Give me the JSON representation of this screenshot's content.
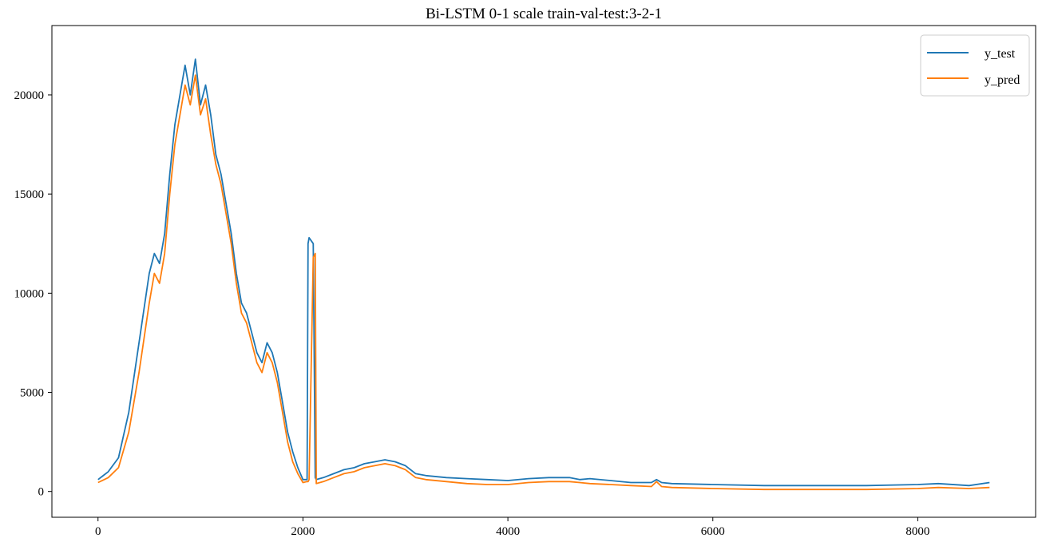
{
  "chart_data": {
    "type": "line",
    "title": "Bi-LSTM 0-1 scale train-val-test:3-2-1",
    "xlabel": "",
    "ylabel": "",
    "xlim": [
      -450,
      9150
    ],
    "ylim": [
      -1300,
      23500
    ],
    "xticks": [
      0,
      2000,
      4000,
      6000,
      8000
    ],
    "xtick_labels": [
      "0",
      "2000",
      "4000",
      "6000",
      "8000"
    ],
    "yticks": [
      0,
      5000,
      10000,
      15000,
      20000
    ],
    "ytick_labels": [
      "0",
      "5000",
      "10000",
      "15000",
      "20000"
    ],
    "grid": false,
    "legend_position": "top-right",
    "series": [
      {
        "name": "y_test",
        "color": "#1f77b4",
        "x": [
          0,
          100,
          200,
          300,
          400,
          500,
          550,
          600,
          650,
          700,
          750,
          800,
          850,
          900,
          950,
          1000,
          1050,
          1100,
          1150,
          1200,
          1250,
          1300,
          1350,
          1400,
          1450,
          1500,
          1550,
          1600,
          1650,
          1700,
          1750,
          1800,
          1850,
          1900,
          1950,
          2000,
          2040,
          2050,
          2060,
          2100,
          2120,
          2130,
          2200,
          2300,
          2400,
          2500,
          2600,
          2700,
          2800,
          2900,
          3000,
          3100,
          3200,
          3400,
          3600,
          3800,
          4000,
          4200,
          4400,
          4600,
          4700,
          4800,
          5000,
          5200,
          5400,
          5450,
          5500,
          5600,
          6000,
          6500,
          7000,
          7500,
          8000,
          8200,
          8500,
          8700
        ],
        "y": [
          600,
          1000,
          1700,
          4000,
          7500,
          11000,
          12000,
          11500,
          13000,
          16000,
          18500,
          20000,
          21500,
          20000,
          21800,
          19500,
          20500,
          19000,
          17000,
          16000,
          14500,
          13000,
          11000,
          9500,
          9000,
          8000,
          7000,
          6500,
          7500,
          7000,
          6000,
          4500,
          3000,
          2000,
          1200,
          600,
          600,
          12500,
          12800,
          12500,
          700,
          600,
          700,
          900,
          1100,
          1200,
          1400,
          1500,
          1600,
          1500,
          1300,
          900,
          800,
          700,
          650,
          600,
          550,
          650,
          700,
          700,
          600,
          650,
          550,
          450,
          450,
          600,
          450,
          400,
          350,
          300,
          300,
          300,
          350,
          400,
          300,
          450
        ]
      },
      {
        "name": "y_pred",
        "color": "#ff7f0e",
        "x": [
          0,
          100,
          200,
          300,
          400,
          500,
          550,
          600,
          650,
          700,
          750,
          800,
          850,
          900,
          950,
          1000,
          1050,
          1100,
          1150,
          1200,
          1250,
          1300,
          1350,
          1400,
          1450,
          1500,
          1550,
          1600,
          1650,
          1700,
          1750,
          1800,
          1850,
          1900,
          1950,
          2000,
          2040,
          2050,
          2060,
          2100,
          2120,
          2130,
          2200,
          2300,
          2400,
          2500,
          2600,
          2700,
          2800,
          2900,
          3000,
          3100,
          3200,
          3400,
          3600,
          3800,
          4000,
          4200,
          4400,
          4600,
          4700,
          4800,
          5000,
          5200,
          5400,
          5450,
          5500,
          5600,
          6000,
          6500,
          7000,
          7500,
          8000,
          8200,
          8500,
          8700
        ],
        "y": [
          450,
          700,
          1200,
          3000,
          6000,
          9500,
          11000,
          10500,
          12000,
          15000,
          17500,
          19000,
          20500,
          19500,
          21000,
          19000,
          19800,
          18000,
          16500,
          15500,
          14000,
          12500,
          10500,
          9000,
          8500,
          7500,
          6500,
          6000,
          7000,
          6500,
          5500,
          4000,
          2500,
          1500,
          900,
          450,
          500,
          500,
          600,
          11800,
          12000,
          400,
          500,
          700,
          900,
          1000,
          1200,
          1300,
          1400,
          1300,
          1100,
          700,
          600,
          500,
          400,
          350,
          350,
          450,
          500,
          500,
          450,
          400,
          350,
          300,
          250,
          500,
          250,
          200,
          150,
          100,
          100,
          100,
          150,
          200,
          150,
          200
        ]
      }
    ]
  }
}
